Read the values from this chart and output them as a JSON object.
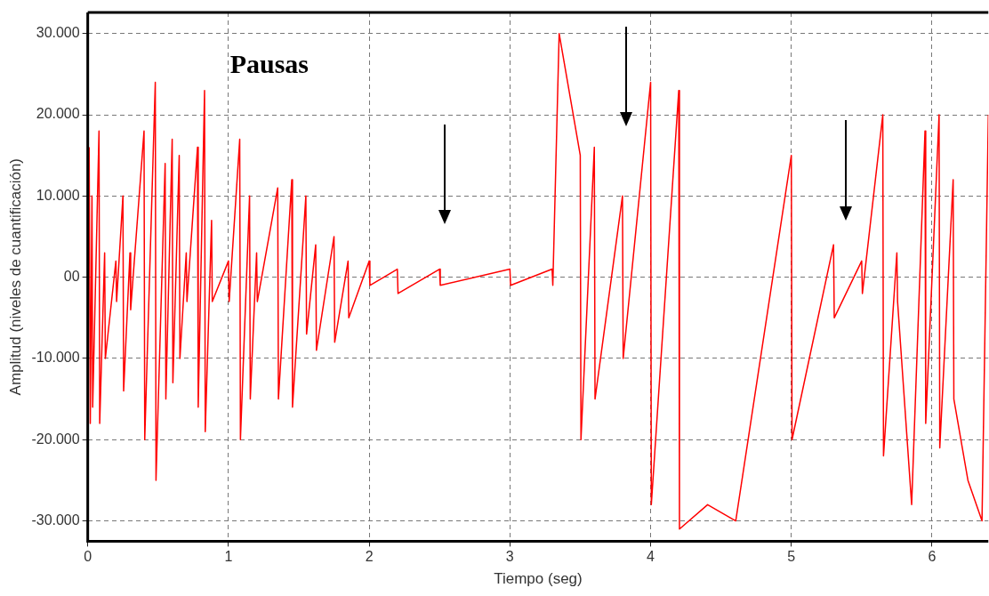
{
  "chart_data": {
    "type": "line",
    "xlabel": "Tiempo (seg)",
    "ylabel": "Amplitud (niveles de cuantificación)",
    "annotations": [
      "Pausas"
    ],
    "xlim": [
      0,
      6.4
    ],
    "xticks": [
      0,
      1,
      2,
      3,
      4,
      5,
      6
    ],
    "ylim": [
      -32500,
      32600
    ],
    "yticks": [
      {
        "value": -30000,
        "label": "-30.000"
      },
      {
        "value": -20000,
        "label": "-20.000"
      },
      {
        "value": -10000,
        "label": "-10.000"
      },
      {
        "value": 0,
        "label": "00"
      },
      {
        "value": 10000,
        "label": "10.000"
      },
      {
        "value": 20000,
        "label": "20.000"
      },
      {
        "value": 30000,
        "label": "30.000"
      }
    ],
    "grid": true,
    "legend": false,
    "marker": "none",
    "line_style": "solid",
    "series": [
      {
        "color": "#ff0000",
        "x": [
          0.01,
          0.018,
          0.03,
          0.035,
          0.08,
          0.085,
          0.12,
          0.125,
          0.2,
          0.205,
          0.25,
          0.255,
          0.3,
          0.305,
          0.4,
          0.405,
          0.48,
          0.485,
          0.55,
          0.555,
          0.6,
          0.605,
          0.65,
          0.655,
          0.7,
          0.705,
          0.78,
          0.785,
          0.83,
          0.835,
          0.88,
          0.885,
          1.0,
          1.005,
          1.08,
          1.085,
          1.15,
          1.155,
          1.2,
          1.205,
          1.35,
          1.355,
          1.45,
          1.455,
          1.55,
          1.555,
          1.62,
          1.625,
          1.75,
          1.755,
          1.85,
          1.855,
          2.0,
          2.005,
          2.2,
          2.205,
          2.5,
          2.505,
          3.0,
          3.005,
          3.3,
          3.305,
          3.35,
          3.355,
          3.42,
          3.425,
          3.5,
          3.505,
          3.6,
          3.605,
          3.7,
          3.705,
          3.8,
          3.805,
          3.9,
          3.905,
          4.0,
          4.005,
          4.2,
          4.205,
          4.4,
          4.405,
          4.6,
          4.605,
          4.75,
          4.755,
          4.9,
          4.905,
          5.0,
          5.005,
          5.1,
          5.105,
          5.2,
          5.205,
          5.3,
          5.305,
          5.5,
          5.505,
          5.58,
          5.585,
          5.65,
          5.655,
          5.75,
          5.755,
          5.85,
          5.855,
          5.95,
          5.955,
          6.05,
          6.055,
          6.15,
          6.155,
          6.25,
          6.255,
          6.35,
          6.355,
          6.4
        ],
        "values": [
          16000,
          -18000,
          10000,
          -16000,
          18000,
          -18000,
          3000,
          -10000,
          2000,
          -3000,
          10000,
          -14000,
          3000,
          -4000,
          18000,
          -20000,
          24000,
          -25000,
          14000,
          -15000,
          17000,
          -13000,
          15000,
          -10000,
          3000,
          -3000,
          16000,
          -16000,
          23000,
          -19000,
          7000,
          -3000,
          2000,
          -3000,
          17000,
          -20000,
          10000,
          -15000,
          3000,
          -3000,
          11000,
          -15000,
          12000,
          -16000,
          10000,
          -7000,
          4000,
          -9000,
          5000,
          -8000,
          2000,
          -5000,
          2000,
          -1000,
          1000,
          -2000,
          1000,
          -1000,
          1000,
          -1000,
          1000,
          -1000,
          30000,
          null,
          null,
          null,
          15000,
          -20000,
          16000,
          -15000,
          null,
          null,
          10000,
          -10000,
          null,
          null,
          24000,
          -28000,
          23000,
          -31000,
          null,
          -28000,
          null,
          -30000,
          null,
          null,
          null,
          null,
          15000,
          -20000,
          null,
          null,
          null,
          null,
          4000,
          -5000,
          2000,
          -2000,
          null,
          null,
          20000,
          -22000,
          3000,
          -3000,
          null,
          -28000,
          18000,
          -18000,
          20000,
          -21000,
          12000,
          -15000,
          null,
          -25000,
          null,
          -30000,
          20000
        ]
      }
    ]
  }
}
